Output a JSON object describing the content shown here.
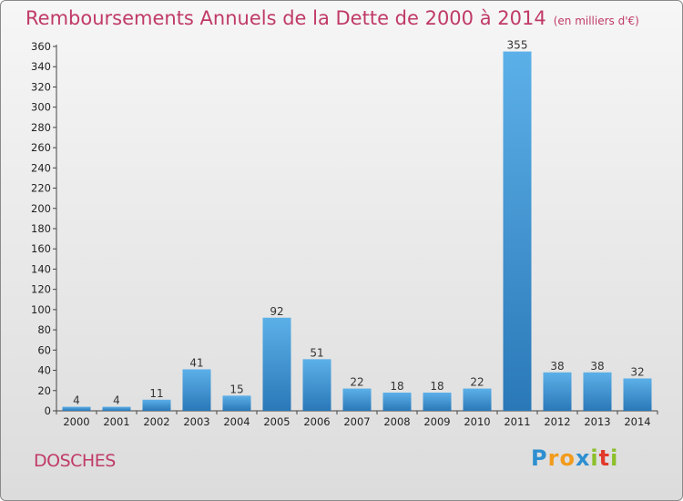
{
  "header": {
    "title": "Remboursements Annuels de la Dette de 2000 à 2014",
    "unit": "(en milliers d'€)"
  },
  "footer": {
    "commune": "DOSCHES",
    "logo": "Proxiti"
  },
  "colors": {
    "accent": "#c03a68",
    "bar_top": "#5cb0e8",
    "bar_bottom": "#2a78b8"
  },
  "chart_data": {
    "type": "bar",
    "title": "Remboursements Annuels de la Dette de 2000 à 2014",
    "xlabel": "",
    "ylabel": "",
    "categories": [
      "2000",
      "2001",
      "2002",
      "2003",
      "2004",
      "2005",
      "2006",
      "2007",
      "2008",
      "2009",
      "2010",
      "2011",
      "2012",
      "2013",
      "2014"
    ],
    "values": [
      4,
      4,
      11,
      41,
      15,
      92,
      51,
      22,
      18,
      18,
      22,
      355,
      38,
      38,
      32
    ],
    "ylim": [
      0,
      360
    ],
    "yticks": [
      0,
      20,
      40,
      60,
      80,
      100,
      120,
      140,
      160,
      180,
      200,
      220,
      240,
      260,
      280,
      300,
      320,
      340,
      360
    ],
    "grid": false,
    "legend": "none"
  }
}
